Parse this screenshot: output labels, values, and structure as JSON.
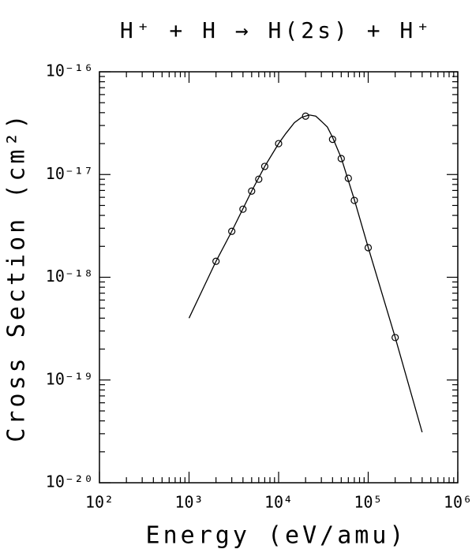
{
  "chart_data": {
    "type": "scatter",
    "title": "H⁺ + H → H(2s) + H⁺",
    "x_label": "Energy (eV/amu)",
    "y_label": "Cross Section (cm²)",
    "log_x": true,
    "log_y": true,
    "xlim": [
      100,
      1000000
    ],
    "ylim": [
      1e-20,
      1e-16
    ],
    "xticks": [
      {
        "value": 100,
        "label": "10²"
      },
      {
        "value": 1000,
        "label": "10³"
      },
      {
        "value": 10000,
        "label": "10⁴"
      },
      {
        "value": 100000,
        "label": "10⁵"
      },
      {
        "value": 1000000,
        "label": "10⁶"
      }
    ],
    "yticks": [
      {
        "value": 1e-20,
        "label": "10⁻²⁰"
      },
      {
        "value": 1e-19,
        "label": "10⁻¹⁹"
      },
      {
        "value": 1e-18,
        "label": "10⁻¹⁸"
      },
      {
        "value": 1e-17,
        "label": "10⁻¹⁷"
      },
      {
        "value": 1e-16,
        "label": "10⁻¹⁶"
      }
    ],
    "series": [
      {
        "style": "markers",
        "color": "#000000",
        "x": [
          2000,
          3000,
          4000,
          5000,
          6000,
          7000,
          10000,
          20000,
          40000,
          50000,
          60000,
          70000,
          100000,
          200000
        ],
        "values": [
          1.43e-18,
          2.8e-18,
          4.6e-18,
          6.9e-18,
          9e-18,
          1.2e-17,
          2e-17,
          3.7e-17,
          2.2e-17,
          1.43e-17,
          9.2e-18,
          5.6e-18,
          1.94e-18,
          2.59e-19
        ]
      },
      {
        "style": "line",
        "color": "#000000",
        "x": [
          1000,
          2000,
          3000,
          5000,
          7000,
          10000,
          12000,
          15000,
          18000,
          22000,
          26000,
          30000,
          35000,
          40000,
          50000,
          70000,
          100000,
          200000,
          400000
        ],
        "values": [
          4e-19,
          1.43e-18,
          2.8e-18,
          6.9e-18,
          1.2e-17,
          2e-17,
          2.5e-17,
          3.2e-17,
          3.6e-17,
          3.8e-17,
          3.7e-17,
          3.3e-17,
          2.9e-17,
          2.3e-17,
          1.45e-17,
          5.7e-18,
          1.95e-18,
          2.6e-19,
          3.1e-20
        ]
      }
    ]
  }
}
